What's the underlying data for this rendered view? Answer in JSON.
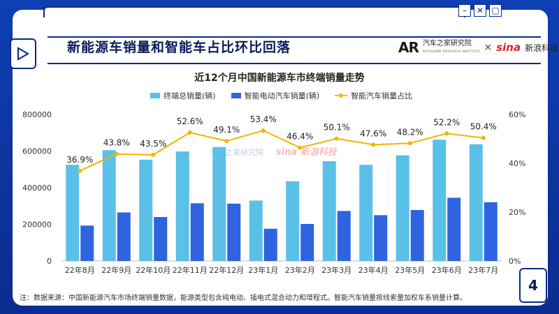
{
  "header": {
    "title": "新能源车销量和智能车占比环比回落",
    "brand_autohome": "汽车之家研究院",
    "brand_autohome_sub": "AUTOHOME RESEARCH INSTITUTE",
    "brand_sina": "sina",
    "brand_sina_name": "新浪科技",
    "brand_separator": "×",
    "page_number": "4"
  },
  "watermark": {
    "autohome": "汽车之家研究院",
    "sina": "sina 新浪科技"
  },
  "footnote": "注：数据来源：中国新能源汽车市场终端销量数据，能源类型包含纯电动、插电式混合动力和增程式。智能汽车销量按线索量加权车系销量计算。",
  "colors": {
    "total": "#5bc0e8",
    "smart": "#2f63e0",
    "ratio": "#f4b400"
  },
  "chart_data": {
    "type": "bar",
    "title": "近12个月中国新能源车市终端销量走势",
    "categories": [
      "22年8月",
      "22年9月",
      "22年10月",
      "22年11月",
      "22年12月",
      "23年1月",
      "23年2月",
      "23年3月",
      "23年4月",
      "23年5月",
      "23年6月",
      "23年7月"
    ],
    "series": [
      {
        "name": "终端总销量(辆)",
        "type": "bar",
        "axis": "left",
        "values": [
          525000,
          605000,
          553000,
          598000,
          622000,
          330000,
          435000,
          545000,
          525000,
          577000,
          662000,
          637000
        ]
      },
      {
        "name": "智能电动汽车销量(辆)",
        "type": "bar",
        "axis": "left",
        "values": [
          193000,
          265000,
          240000,
          315000,
          313000,
          176000,
          202000,
          273000,
          250000,
          278000,
          345000,
          321000
        ]
      },
      {
        "name": "智能汽车销量占比",
        "type": "line",
        "axis": "right",
        "values": [
          36.9,
          43.8,
          43.5,
          52.6,
          49.1,
          53.4,
          46.4,
          50.1,
          47.6,
          48.2,
          52.2,
          50.4
        ],
        "labels": [
          "36.9%",
          "43.8%",
          "43.5%",
          "52.6%",
          "49.1%",
          "53.4%",
          "46.4%",
          "50.1%",
          "47.6%",
          "48.2%",
          "52.2%",
          "50.4%"
        ]
      }
    ],
    "ylim_left": [
      0,
      800000
    ],
    "yticks_left": [
      "0",
      "200000",
      "400000",
      "600000",
      "800000"
    ],
    "ylim_right": [
      0,
      60
    ],
    "yticks_right": [
      "0%",
      "20%",
      "40%",
      "60%"
    ],
    "grid": false,
    "legend_position": "top"
  }
}
